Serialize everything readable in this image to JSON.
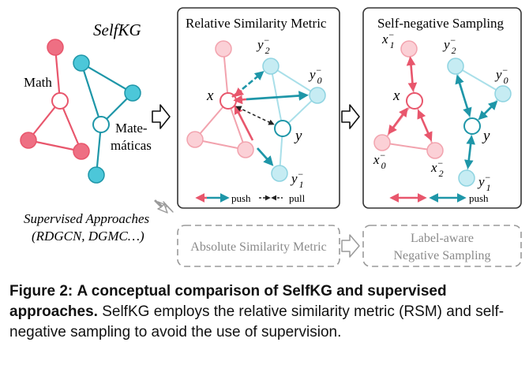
{
  "left_panel": {
    "title": "SelfKG",
    "label_math": "Math",
    "label_mate_1": "Mate-",
    "label_mate_2": "máticas",
    "supervised_1": "Supervised Approaches",
    "supervised_2": "(RDGCN, DGMC…)"
  },
  "rsm_panel": {
    "title": "Relative Similarity Metric",
    "x": "x",
    "y": "y",
    "y2": "y",
    "y2_sub": "2",
    "y0": "y",
    "y0_sub": "0",
    "y1": "y",
    "y1_sub": "1",
    "neg": "−",
    "legend_push": "push",
    "legend_pull": "pull"
  },
  "sns_panel": {
    "title": "Self-negative Sampling",
    "x": "x",
    "y": "y",
    "x1": "x",
    "x1_sub": "1",
    "x0": "x",
    "x0_sub": "0",
    "x2": "x",
    "x2_sub": "2",
    "y2": "y",
    "y2_sub": "2",
    "y0": "y",
    "y0_sub": "0",
    "y1": "y",
    "y1_sub": "1",
    "neg": "−",
    "legend_push": "push"
  },
  "bottom": {
    "absolute": "Absolute Similarity Metric",
    "label_aware_1": "Label-aware",
    "label_aware_2": "Negative Sampling"
  },
  "caption": {
    "label": "Figure 2:",
    "title": "A conceptual comparison of SelfKG and supervised approaches.",
    "body": "SelfKG employs the relative similarity metric (RSM) and self-negative sampling to avoid the use of supervision."
  },
  "colors": {
    "red": "#e8566c",
    "red_fill": "#f2a3ae",
    "red_light": "#fbd0d6",
    "teal": "#1e96a8",
    "teal_fill": "#4cc7d9",
    "teal_light": "#c6ecf3",
    "gray": "#9a9a9a"
  }
}
